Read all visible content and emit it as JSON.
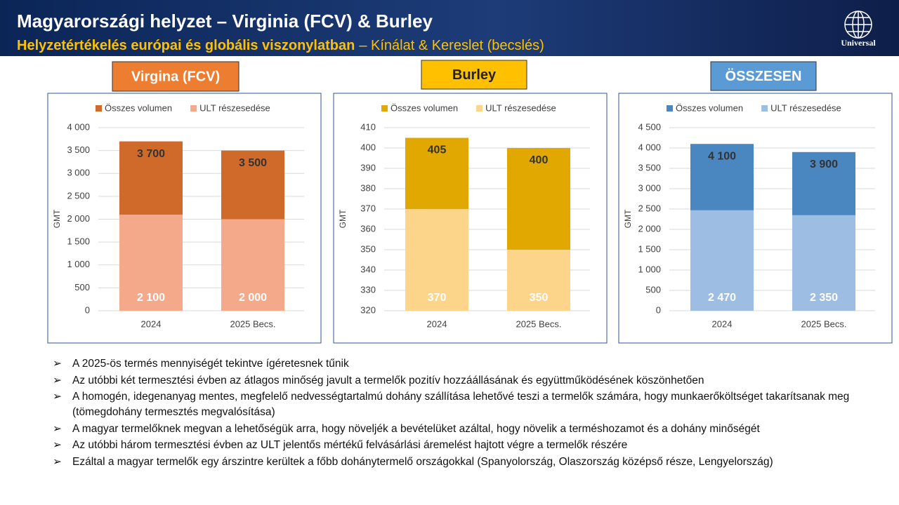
{
  "header": {
    "title": "Magyarországi helyzet – Virginia (FCV) & Burley",
    "subtitle_bold": "Helyzetértékelés európai és globális viszonylatban",
    "subtitle_rest": "– Kínálat & Kereslet (becslés)",
    "logo": "Universal"
  },
  "chart_data": [
    {
      "type": "bar",
      "barmode": "overlay",
      "title": "Virgina (FCV)",
      "title_color": "#ed7d31",
      "title_text_color": "#ffffff",
      "y_label": "GMT",
      "categories": [
        "2024",
        "2025 Becs."
      ],
      "series": [
        {
          "name": "Összes volumen",
          "color": "#d06a2a",
          "values": [
            3700,
            3500
          ],
          "value_labels": [
            "3 700",
            "3 500"
          ]
        },
        {
          "name": "ULT részesedése",
          "color": "#f4a98b",
          "values": [
            2100,
            2000
          ],
          "value_labels": [
            "2 100",
            "2 000"
          ]
        }
      ],
      "ylim": [
        0,
        4000
      ],
      "yticks": [
        0,
        500,
        {
          "value": 1000,
          "label": "1 000"
        },
        {
          "value": 1500,
          "label": "1 500"
        },
        {
          "value": 2000,
          "label": "2 000"
        },
        {
          "value": 2500,
          "label": "2 500"
        },
        {
          "value": 3000,
          "label": "3 000"
        },
        {
          "value": 3500,
          "label": "3 500"
        },
        {
          "value": 4000,
          "label": "4 000"
        }
      ],
      "grid": true
    },
    {
      "type": "bar",
      "barmode": "overlay",
      "title": "Burley",
      "title_color": "#ffc000",
      "title_text_color": "#ffffff",
      "y_label": "GMT",
      "categories": [
        "2024",
        "2025 Becs."
      ],
      "series": [
        {
          "name": "Összes volumen",
          "color": "#e0a800",
          "values": [
            405,
            400
          ]
        },
        {
          "name": "ULT részesedése",
          "color": "#fdd58a",
          "values": [
            370,
            350
          ]
        }
      ],
      "ylim": [
        320,
        410
      ],
      "yticks": [
        320,
        330,
        340,
        350,
        360,
        370,
        380,
        390,
        400,
        410
      ],
      "grid": true
    },
    {
      "type": "bar",
      "barmode": "overlay",
      "title": "ÖSSZESEN",
      "title_color": "#5b9bd5",
      "title_text_color": "#ffffff",
      "y_label": "GMT",
      "categories": [
        "2024",
        "2025 Becs."
      ],
      "series": [
        {
          "name": "Összes volumen",
          "color": "#4a86c0",
          "values": [
            4100,
            3900
          ],
          "value_labels": [
            "4 100",
            "3 900"
          ]
        },
        {
          "name": "ULT részesedése",
          "color": "#9dbde3",
          "values": [
            2470,
            2350
          ],
          "value_labels": [
            "2 470",
            "2 350"
          ]
        }
      ],
      "ylim": [
        0,
        4500
      ],
      "yticks": [
        0,
        500,
        {
          "value": 1000,
          "label": "1 000"
        },
        {
          "value": 1500,
          "label": "1 500"
        },
        {
          "value": 2000,
          "label": "2 000"
        },
        {
          "value": 2500,
          "label": "2 500"
        },
        {
          "value": 3000,
          "label": "3 000"
        },
        {
          "value": 3500,
          "label": "3 500"
        },
        {
          "value": 4000,
          "label": "4 000"
        },
        {
          "value": 4500,
          "label": "4 500"
        }
      ],
      "grid": true
    }
  ],
  "bullets": [
    "A 2025-ös termés mennyiségét tekintve ígéretesnek tűnik",
    "Az utóbbi két termesztési évben az átlagos minőség javult a termelők pozitív hozzáállásának és együttműködésének köszönhetően",
    "A homogén, idegenanyag mentes, megfelelő nedvességtartalmú dohány szállítása lehetővé teszi a termelők számára, hogy munkaerőköltséget takarítsanak meg (tömegdohány termesztés megvalósítása)",
    "A magyar termelőknek megvan a lehetőségük arra, hogy növeljék a bevételüket azáltal, hogy növelik a terméshozamot és a dohány minőségét",
    "Az utóbbi három termesztési évben az ULT jelentős mértékű felvásárlási áremelést hajtott végre a termelők részére",
    "Ezáltal a magyar termelők egy árszintre kerültek a főbb dohánytermelő országokkal (Spanyolország, Olaszország középső része, Lengyelország)"
  ]
}
